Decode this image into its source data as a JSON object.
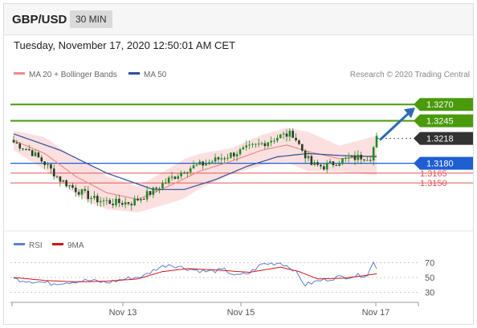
{
  "header": {
    "pair": "GBP/USD",
    "timeframe": "30 MIN"
  },
  "datetime": "Tuesday, November 17, 2020 12:50:01 AM CET",
  "legend": {
    "ma20_label": "MA 20 + Bollinger Bands",
    "ma50_label": "MA 50",
    "rsi_label": "RSI",
    "ma9_label": "9MA",
    "copyright": "Research © 2020 Trading Central"
  },
  "colors": {
    "ma20": "#f08a8a",
    "ma50": "#2b4f9c",
    "bands": "#fbd6d6",
    "candles": "#1f8a1f",
    "resistance": "#4a9a0c",
    "support": "#1f5fd1",
    "support_light": "#e05555",
    "current": "#333333",
    "arrow": "#2a6ab4",
    "rsi": "#5b7fd8",
    "ma9": "#d01414"
  },
  "chart_data": [
    {
      "type": "candlestick",
      "title": "GBP/USD",
      "x_ticks": [
        "Nov 13",
        "Nov 15",
        "Nov 17"
      ],
      "ylim": [
        1.3095,
        1.3296
      ],
      "levels": [
        {
          "label": "1.3270",
          "value": 1.327,
          "kind": "resistance"
        },
        {
          "label": "1.3245",
          "value": 1.3245,
          "kind": "resistance"
        },
        {
          "label": "1.3218",
          "value": 1.3218,
          "kind": "current"
        },
        {
          "label": "1.3180",
          "value": 1.318,
          "kind": "support"
        },
        {
          "label": "1.3165",
          "value": 1.3165,
          "kind": "support_light"
        },
        {
          "label": "1.3150",
          "value": 1.315,
          "kind": "support_light"
        }
      ],
      "close_anchors": [
        [
          0,
          1.3212
        ],
        [
          5,
          1.32
        ],
        [
          10,
          1.318
        ],
        [
          15,
          1.3155
        ],
        [
          20,
          1.314
        ],
        [
          26,
          1.3125
        ],
        [
          32,
          1.312
        ],
        [
          38,
          1.312
        ],
        [
          44,
          1.3135
        ],
        [
          50,
          1.3155
        ],
        [
          56,
          1.3172
        ],
        [
          62,
          1.318
        ],
        [
          68,
          1.319
        ],
        [
          74,
          1.32
        ],
        [
          80,
          1.321
        ],
        [
          86,
          1.3222
        ],
        [
          90,
          1.3225
        ],
        [
          93,
          1.32
        ],
        [
          96,
          1.3178
        ],
        [
          100,
          1.3175
        ],
        [
          106,
          1.3185
        ],
        [
          112,
          1.319
        ],
        [
          115,
          1.319
        ],
        [
          117,
          1.3218
        ]
      ],
      "ma20_anchors": [
        [
          0,
          1.3215
        ],
        [
          10,
          1.3195
        ],
        [
          20,
          1.316
        ],
        [
          30,
          1.3135
        ],
        [
          40,
          1.3125
        ],
        [
          50,
          1.3145
        ],
        [
          60,
          1.3168
        ],
        [
          70,
          1.3183
        ],
        [
          80,
          1.32
        ],
        [
          88,
          1.3208
        ],
        [
          95,
          1.3198
        ],
        [
          105,
          1.3187
        ],
        [
          117,
          1.3192
        ]
      ],
      "band_width_anchors": [
        [
          0,
          0.0015
        ],
        [
          10,
          0.0025
        ],
        [
          25,
          0.0028
        ],
        [
          40,
          0.002
        ],
        [
          55,
          0.003
        ],
        [
          70,
          0.002
        ],
        [
          85,
          0.0025
        ],
        [
          95,
          0.003
        ],
        [
          105,
          0.002
        ],
        [
          117,
          0.003
        ]
      ],
      "ma50_anchors": [
        [
          0,
          1.3225
        ],
        [
          15,
          1.32
        ],
        [
          30,
          1.3165
        ],
        [
          45,
          1.314
        ],
        [
          55,
          1.314
        ],
        [
          65,
          1.3155
        ],
        [
          75,
          1.3175
        ],
        [
          85,
          1.319
        ],
        [
          95,
          1.3195
        ],
        [
          105,
          1.3192
        ],
        [
          117,
          1.319
        ]
      ],
      "candle_count": 118
    },
    {
      "type": "line",
      "title": "RSI",
      "ylim": [
        25,
        75
      ],
      "y_ticks": [
        70,
        50,
        30
      ],
      "series": [
        {
          "name": "RSI",
          "anchors": [
            [
              0,
              48
            ],
            [
              6,
              45
            ],
            [
              12,
              42
            ],
            [
              18,
              44
            ],
            [
              24,
              46
            ],
            [
              30,
              43
            ],
            [
              36,
              48
            ],
            [
              42,
              52
            ],
            [
              46,
              62
            ],
            [
              50,
              68
            ],
            [
              56,
              62
            ],
            [
              62,
              58
            ],
            [
              68,
              60
            ],
            [
              72,
              52
            ],
            [
              76,
              56
            ],
            [
              80,
              68
            ],
            [
              86,
              70
            ],
            [
              90,
              62
            ],
            [
              94,
              40
            ],
            [
              98,
              45
            ],
            [
              104,
              50
            ],
            [
              110,
              52
            ],
            [
              114,
              54
            ],
            [
              116,
              70
            ],
            [
              117,
              64
            ]
          ]
        },
        {
          "name": "9MA",
          "anchors": [
            [
              0,
              50
            ],
            [
              10,
              46
            ],
            [
              20,
              44
            ],
            [
              30,
              45
            ],
            [
              40,
              48
            ],
            [
              48,
              58
            ],
            [
              56,
              62
            ],
            [
              66,
              60
            ],
            [
              76,
              57
            ],
            [
              86,
              64
            ],
            [
              92,
              58
            ],
            [
              98,
              48
            ],
            [
              106,
              49
            ],
            [
              112,
              52
            ],
            [
              117,
              55
            ]
          ]
        }
      ]
    }
  ]
}
